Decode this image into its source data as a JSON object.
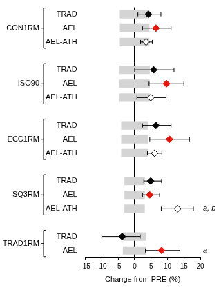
{
  "chart_data": {
    "type": "forest",
    "orientation": "horizontal",
    "grid": false,
    "legend": false,
    "xlabel": "Change from PRE (%)",
    "xlim": [
      -15,
      20
    ],
    "xticks": [
      -15,
      -10,
      -5,
      0,
      5,
      10,
      15,
      20
    ],
    "groups": [
      {
        "name": "CON1RM",
        "rows": [
          {
            "label": "TRAD",
            "value": 4.2,
            "error_low": 1.0,
            "error_high": 8.0,
            "band": [
              -4.5,
              4.5
            ],
            "color": "#000000",
            "marker": "diamond"
          },
          {
            "label": "AEL",
            "value": 6.5,
            "error_low": 2.4,
            "error_high": 11.1,
            "band": [
              -4.5,
              4.5
            ],
            "color": "#e8160c",
            "marker": "diamond"
          },
          {
            "label": "AEL-ATH",
            "value": 3.5,
            "error_low": 1.8,
            "error_high": 5.4,
            "band": [
              -4.5,
              4.5
            ],
            "color": "#000000",
            "marker": "diamond-open"
          }
        ]
      },
      {
        "name": "ISO90",
        "rows": [
          {
            "label": "TRAD",
            "value": 5.8,
            "error_low": 0.0,
            "error_high": 12.0,
            "band": [
              -4.6,
              4.6
            ],
            "color": "#000000",
            "marker": "diamond"
          },
          {
            "label": "AEL",
            "value": 9.7,
            "error_low": 4.4,
            "error_high": 15.0,
            "band": [
              -4.6,
              4.6
            ],
            "color": "#e8160c",
            "marker": "diamond"
          },
          {
            "label": "AEL-ATH",
            "value": 4.9,
            "error_low": 0.7,
            "error_high": 9.6,
            "band": [
              -4.6,
              4.6
            ],
            "color": "#000000",
            "marker": "diamond-open"
          }
        ]
      },
      {
        "name": "ECC1RM",
        "rows": [
          {
            "label": "TRAD",
            "value": 6.5,
            "error_low": 2.4,
            "error_high": 11.1,
            "band": [
              -4.1,
              4.1
            ],
            "color": "#000000",
            "marker": "diamond"
          },
          {
            "label": "AEL",
            "value": 10.6,
            "error_low": 4.6,
            "error_high": 16.7,
            "band": [
              -4.1,
              4.1
            ],
            "color": "#e8160c",
            "marker": "diamond"
          },
          {
            "label": "AEL-ATH",
            "value": 6.1,
            "error_low": 3.9,
            "error_high": 8.3,
            "band": [
              -4.1,
              4.1
            ],
            "color": "#000000",
            "marker": "diamond-open"
          }
        ]
      },
      {
        "name": "SQ3RM",
        "rows": [
          {
            "label": "TRAD",
            "value": 4.9,
            "error_low": 2.8,
            "error_high": 8.2,
            "band": [
              -3.1,
              3.1
            ],
            "color": "#000000",
            "marker": "diamond"
          },
          {
            "label": "AEL",
            "value": 4.6,
            "error_low": 2.4,
            "error_high": 7.6,
            "band": [
              -3.1,
              3.1
            ],
            "color": "#e8160c",
            "marker": "diamond"
          },
          {
            "label": "AEL-ATH",
            "value": 13.1,
            "error_low": 8.1,
            "error_high": 17.9,
            "band": [
              -3.1,
              3.1
            ],
            "color": "#000000",
            "marker": "diamond-open",
            "annotation": "a, b"
          }
        ]
      },
      {
        "name": "TRAD1RM",
        "rows": [
          {
            "label": "TRAD",
            "value": -3.8,
            "error_low": -10.0,
            "error_high": 1.7,
            "band": [
              -3.6,
              3.6
            ],
            "color": "#000000",
            "marker": "diamond"
          },
          {
            "label": "AEL",
            "value": 8.2,
            "error_low": 3.3,
            "error_high": 13.8,
            "band": [
              -3.6,
              3.6
            ],
            "color": "#e8160c",
            "marker": "diamond",
            "annotation": "a"
          }
        ]
      }
    ]
  }
}
